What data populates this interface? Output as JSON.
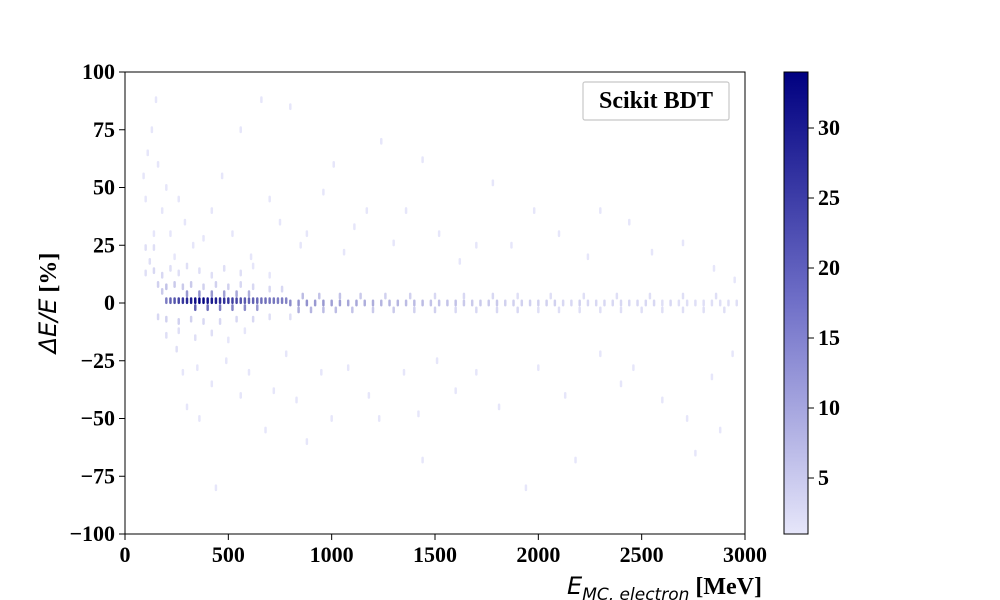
{
  "chart_data": {
    "type": "heatmap",
    "annotation": "Scikit BDT",
    "xlabel": {
      "math": "E",
      "subscript": "MC, electron",
      "unit": " [MeV]"
    },
    "ylabel": {
      "math": "ΔE/E",
      "unit": " [%]"
    },
    "xlim": [
      0,
      3000
    ],
    "ylim": [
      -100,
      100
    ],
    "xticks": [
      0,
      500,
      1000,
      1500,
      2000,
      2500,
      3000
    ],
    "yticks": [
      100,
      75,
      50,
      25,
      0,
      -25,
      -50,
      -75,
      -100
    ],
    "xtick_labels": [
      "0",
      "500",
      "1000",
      "1500",
      "2000",
      "2500",
      "3000"
    ],
    "ytick_labels": [
      "100",
      "75",
      "50",
      "25",
      "0",
      "−25",
      "−50",
      "−75",
      "−100"
    ],
    "colorbar": {
      "range": [
        1,
        34
      ],
      "ticks": [
        5,
        10,
        15,
        20,
        25,
        30
      ],
      "tick_labels": [
        "5",
        "10",
        "15",
        "20",
        "25",
        "30"
      ],
      "color_low": "#e6e6fa",
      "color_high": "#000080"
    },
    "bin_width_x": 20,
    "bin_height_y": 3,
    "bins": [
      [
        300,
        1,
        28
      ],
      [
        320,
        1,
        30
      ],
      [
        340,
        1,
        32
      ],
      [
        360,
        1,
        34
      ],
      [
        380,
        1,
        33
      ],
      [
        400,
        1,
        31
      ],
      [
        420,
        1,
        30
      ],
      [
        440,
        1,
        29
      ],
      [
        460,
        1,
        28
      ],
      [
        480,
        1,
        27
      ],
      [
        500,
        1,
        26
      ],
      [
        520,
        1,
        25
      ],
      [
        540,
        1,
        24
      ],
      [
        560,
        1,
        22
      ],
      [
        580,
        1,
        21
      ],
      [
        600,
        1,
        20
      ],
      [
        620,
        1,
        20
      ],
      [
        640,
        1,
        19
      ],
      [
        660,
        1,
        18
      ],
      [
        680,
        1,
        18
      ],
      [
        700,
        1,
        17
      ],
      [
        720,
        1,
        17
      ],
      [
        740,
        1,
        16
      ],
      [
        760,
        1,
        16
      ],
      [
        780,
        1,
        15
      ],
      [
        200,
        1,
        16
      ],
      [
        220,
        1,
        20
      ],
      [
        240,
        1,
        22
      ],
      [
        260,
        1,
        24
      ],
      [
        280,
        1,
        26
      ],
      [
        340,
        -2,
        20
      ],
      [
        400,
        -2,
        18
      ],
      [
        460,
        -2,
        16
      ],
      [
        520,
        -2,
        15
      ],
      [
        580,
        -2,
        14
      ],
      [
        640,
        -2,
        12
      ],
      [
        300,
        4,
        12
      ],
      [
        360,
        4,
        13
      ],
      [
        420,
        4,
        12
      ],
      [
        480,
        4,
        11
      ],
      [
        540,
        4,
        10
      ],
      [
        600,
        4,
        9
      ],
      [
        800,
        0,
        14
      ],
      [
        840,
        0,
        13
      ],
      [
        880,
        0,
        13
      ],
      [
        920,
        0,
        12
      ],
      [
        960,
        0,
        12
      ],
      [
        1000,
        0,
        11
      ],
      [
        1040,
        0,
        11
      ],
      [
        1080,
        0,
        10
      ],
      [
        1120,
        0,
        10
      ],
      [
        1160,
        0,
        9
      ],
      [
        1200,
        0,
        9
      ],
      [
        1240,
        0,
        8
      ],
      [
        1280,
        0,
        8
      ],
      [
        1320,
        0,
        8
      ],
      [
        1360,
        0,
        7
      ],
      [
        1400,
        0,
        7
      ],
      [
        1440,
        0,
        7
      ],
      [
        1480,
        0,
        6
      ],
      [
        1520,
        0,
        6
      ],
      [
        1560,
        0,
        6
      ],
      [
        1600,
        0,
        6
      ],
      [
        1640,
        0,
        5
      ],
      [
        1680,
        0,
        5
      ],
      [
        1720,
        0,
        5
      ],
      [
        1760,
        0,
        5
      ],
      [
        1800,
        0,
        5
      ],
      [
        1840,
        0,
        4
      ],
      [
        1880,
        0,
        4
      ],
      [
        1920,
        0,
        4
      ],
      [
        1960,
        0,
        4
      ],
      [
        2000,
        0,
        4
      ],
      [
        2040,
        0,
        4
      ],
      [
        2080,
        0,
        4
      ],
      [
        2120,
        0,
        3
      ],
      [
        2160,
        0,
        3
      ],
      [
        2200,
        0,
        4
      ],
      [
        2240,
        0,
        3
      ],
      [
        2280,
        0,
        3
      ],
      [
        2320,
        0,
        3
      ],
      [
        2360,
        0,
        3
      ],
      [
        2400,
        0,
        3
      ],
      [
        2440,
        0,
        3
      ],
      [
        2480,
        0,
        3
      ],
      [
        2520,
        0,
        3
      ],
      [
        2560,
        0,
        3
      ],
      [
        2600,
        0,
        2
      ],
      [
        2640,
        0,
        3
      ],
      [
        2680,
        0,
        2
      ],
      [
        2720,
        0,
        2
      ],
      [
        2760,
        0,
        2
      ],
      [
        2800,
        0,
        2
      ],
      [
        2840,
        0,
        2
      ],
      [
        2880,
        0,
        2
      ],
      [
        2920,
        0,
        2
      ],
      [
        2960,
        0,
        2
      ],
      [
        840,
        -3,
        9
      ],
      [
        900,
        -3,
        8
      ],
      [
        960,
        -3,
        7
      ],
      [
        1020,
        -3,
        7
      ],
      [
        1100,
        -3,
        6
      ],
      [
        1200,
        -3,
        5
      ],
      [
        1300,
        -3,
        5
      ],
      [
        1400,
        -3,
        4
      ],
      [
        1500,
        -3,
        4
      ],
      [
        1600,
        -3,
        3
      ],
      [
        1700,
        -3,
        3
      ],
      [
        1800,
        -3,
        3
      ],
      [
        1900,
        -3,
        3
      ],
      [
        2000,
        -3,
        2
      ],
      [
        2100,
        -3,
        2
      ],
      [
        2200,
        -3,
        2
      ],
      [
        2300,
        -3,
        2
      ],
      [
        2400,
        -3,
        2
      ],
      [
        2500,
        -3,
        2
      ],
      [
        2600,
        -3,
        2
      ],
      [
        2700,
        -3,
        2
      ],
      [
        2800,
        -3,
        2
      ],
      [
        2900,
        -3,
        2
      ],
      [
        860,
        3,
        7
      ],
      [
        940,
        3,
        6
      ],
      [
        1040,
        3,
        6
      ],
      [
        1140,
        3,
        5
      ],
      [
        1260,
        3,
        4
      ],
      [
        1380,
        3,
        4
      ],
      [
        1500,
        3,
        3
      ],
      [
        1640,
        3,
        3
      ],
      [
        1780,
        3,
        3
      ],
      [
        1900,
        3,
        2
      ],
      [
        2060,
        3,
        2
      ],
      [
        2220,
        3,
        2
      ],
      [
        2380,
        3,
        2
      ],
      [
        2540,
        3,
        2
      ],
      [
        2700,
        3,
        2
      ],
      [
        2860,
        3,
        2
      ],
      [
        160,
        8,
        4
      ],
      [
        180,
        5,
        5
      ],
      [
        200,
        7,
        6
      ],
      [
        240,
        8,
        5
      ],
      [
        280,
        7,
        5
      ],
      [
        320,
        8,
        5
      ],
      [
        380,
        7,
        4
      ],
      [
        440,
        8,
        4
      ],
      [
        500,
        7,
        4
      ],
      [
        560,
        8,
        3
      ],
      [
        620,
        7,
        3
      ],
      [
        700,
        6,
        3
      ],
      [
        760,
        6,
        3
      ],
      [
        160,
        -6,
        3
      ],
      [
        200,
        -7,
        4
      ],
      [
        260,
        -8,
        4
      ],
      [
        320,
        -7,
        4
      ],
      [
        380,
        -8,
        3
      ],
      [
        460,
        -8,
        3
      ],
      [
        540,
        -7,
        3
      ],
      [
        620,
        -7,
        3
      ],
      [
        700,
        -6,
        2
      ],
      [
        800,
        -6,
        2
      ],
      [
        140,
        14,
        3
      ],
      [
        180,
        12,
        3
      ],
      [
        220,
        15,
        2
      ],
      [
        260,
        13,
        2
      ],
      [
        300,
        16,
        2
      ],
      [
        360,
        14,
        2
      ],
      [
        420,
        12,
        2
      ],
      [
        480,
        15,
        2
      ],
      [
        560,
        13,
        2
      ],
      [
        620,
        16,
        1
      ],
      [
        700,
        12,
        1
      ],
      [
        200,
        -14,
        2
      ],
      [
        260,
        -12,
        2
      ],
      [
        340,
        -15,
        2
      ],
      [
        420,
        -13,
        2
      ],
      [
        500,
        -16,
        1
      ],
      [
        580,
        -12,
        1
      ],
      [
        100,
        24,
        2
      ],
      [
        140,
        24,
        2
      ],
      [
        100,
        13,
        2
      ],
      [
        120,
        18,
        2
      ],
      [
        140,
        30,
        1
      ],
      [
        90,
        55,
        1
      ],
      [
        100,
        45,
        1
      ],
      [
        110,
        65,
        1
      ],
      [
        130,
        75,
        1
      ],
      [
        150,
        88,
        1
      ],
      [
        160,
        60,
        1
      ],
      [
        180,
        40,
        1
      ],
      [
        200,
        50,
        1
      ],
      [
        220,
        30,
        1
      ],
      [
        240,
        20,
        1
      ],
      [
        260,
        45,
        1
      ],
      [
        290,
        35,
        1
      ],
      [
        330,
        25,
        1
      ],
      [
        380,
        28,
        1
      ],
      [
        420,
        40,
        1
      ],
      [
        470,
        55,
        1
      ],
      [
        520,
        30,
        1
      ],
      [
        560,
        75,
        1
      ],
      [
        610,
        20,
        1
      ],
      [
        660,
        88,
        1
      ],
      [
        700,
        45,
        1
      ],
      [
        750,
        35,
        1
      ],
      [
        800,
        85,
        1
      ],
      [
        850,
        25,
        1
      ],
      [
        880,
        30,
        1
      ],
      [
        960,
        48,
        1
      ],
      [
        1010,
        60,
        1
      ],
      [
        1060,
        22,
        1
      ],
      [
        1110,
        33,
        1
      ],
      [
        1170,
        40,
        1
      ],
      [
        1240,
        70,
        1
      ],
      [
        1300,
        26,
        1
      ],
      [
        1360,
        40,
        1
      ],
      [
        1440,
        62,
        1
      ],
      [
        1520,
        30,
        1
      ],
      [
        1620,
        18,
        1
      ],
      [
        1700,
        25,
        1
      ],
      [
        1780,
        52,
        1
      ],
      [
        1870,
        25,
        1
      ],
      [
        1980,
        40,
        1
      ],
      [
        2100,
        30,
        1
      ],
      [
        2240,
        20,
        1
      ],
      [
        2300,
        40,
        1
      ],
      [
        2440,
        35,
        1
      ],
      [
        2550,
        22,
        1
      ],
      [
        2700,
        26,
        1
      ],
      [
        2850,
        15,
        1
      ],
      [
        2950,
        10,
        1
      ],
      [
        250,
        -20,
        2
      ],
      [
        280,
        -30,
        1
      ],
      [
        300,
        -45,
        1
      ],
      [
        350,
        -28,
        1
      ],
      [
        360,
        -50,
        1
      ],
      [
        420,
        -35,
        1
      ],
      [
        440,
        -80,
        1
      ],
      [
        490,
        -25,
        1
      ],
      [
        560,
        -40,
        1
      ],
      [
        600,
        -30,
        1
      ],
      [
        680,
        -55,
        1
      ],
      [
        720,
        -38,
        1
      ],
      [
        780,
        -22,
        1
      ],
      [
        830,
        -42,
        1
      ],
      [
        880,
        -60,
        1
      ],
      [
        950,
        -30,
        1
      ],
      [
        1000,
        -50,
        1
      ],
      [
        1080,
        -28,
        1
      ],
      [
        1180,
        -40,
        1
      ],
      [
        1230,
        -50,
        1
      ],
      [
        1350,
        -30,
        1
      ],
      [
        1420,
        -48,
        1
      ],
      [
        1440,
        -68,
        1
      ],
      [
        1510,
        -25,
        1
      ],
      [
        1600,
        -38,
        1
      ],
      [
        1700,
        -30,
        1
      ],
      [
        1810,
        -45,
        1
      ],
      [
        1940,
        -80,
        1
      ],
      [
        2000,
        -28,
        1
      ],
      [
        2130,
        -40,
        1
      ],
      [
        2180,
        -68,
        1
      ],
      [
        2300,
        -22,
        1
      ],
      [
        2400,
        -35,
        1
      ],
      [
        2460,
        -28,
        1
      ],
      [
        2600,
        -42,
        1
      ],
      [
        2720,
        -50,
        1
      ],
      [
        2760,
        -65,
        1
      ],
      [
        2840,
        -32,
        1
      ],
      [
        2880,
        -55,
        1
      ],
      [
        2940,
        -22,
        1
      ]
    ]
  }
}
